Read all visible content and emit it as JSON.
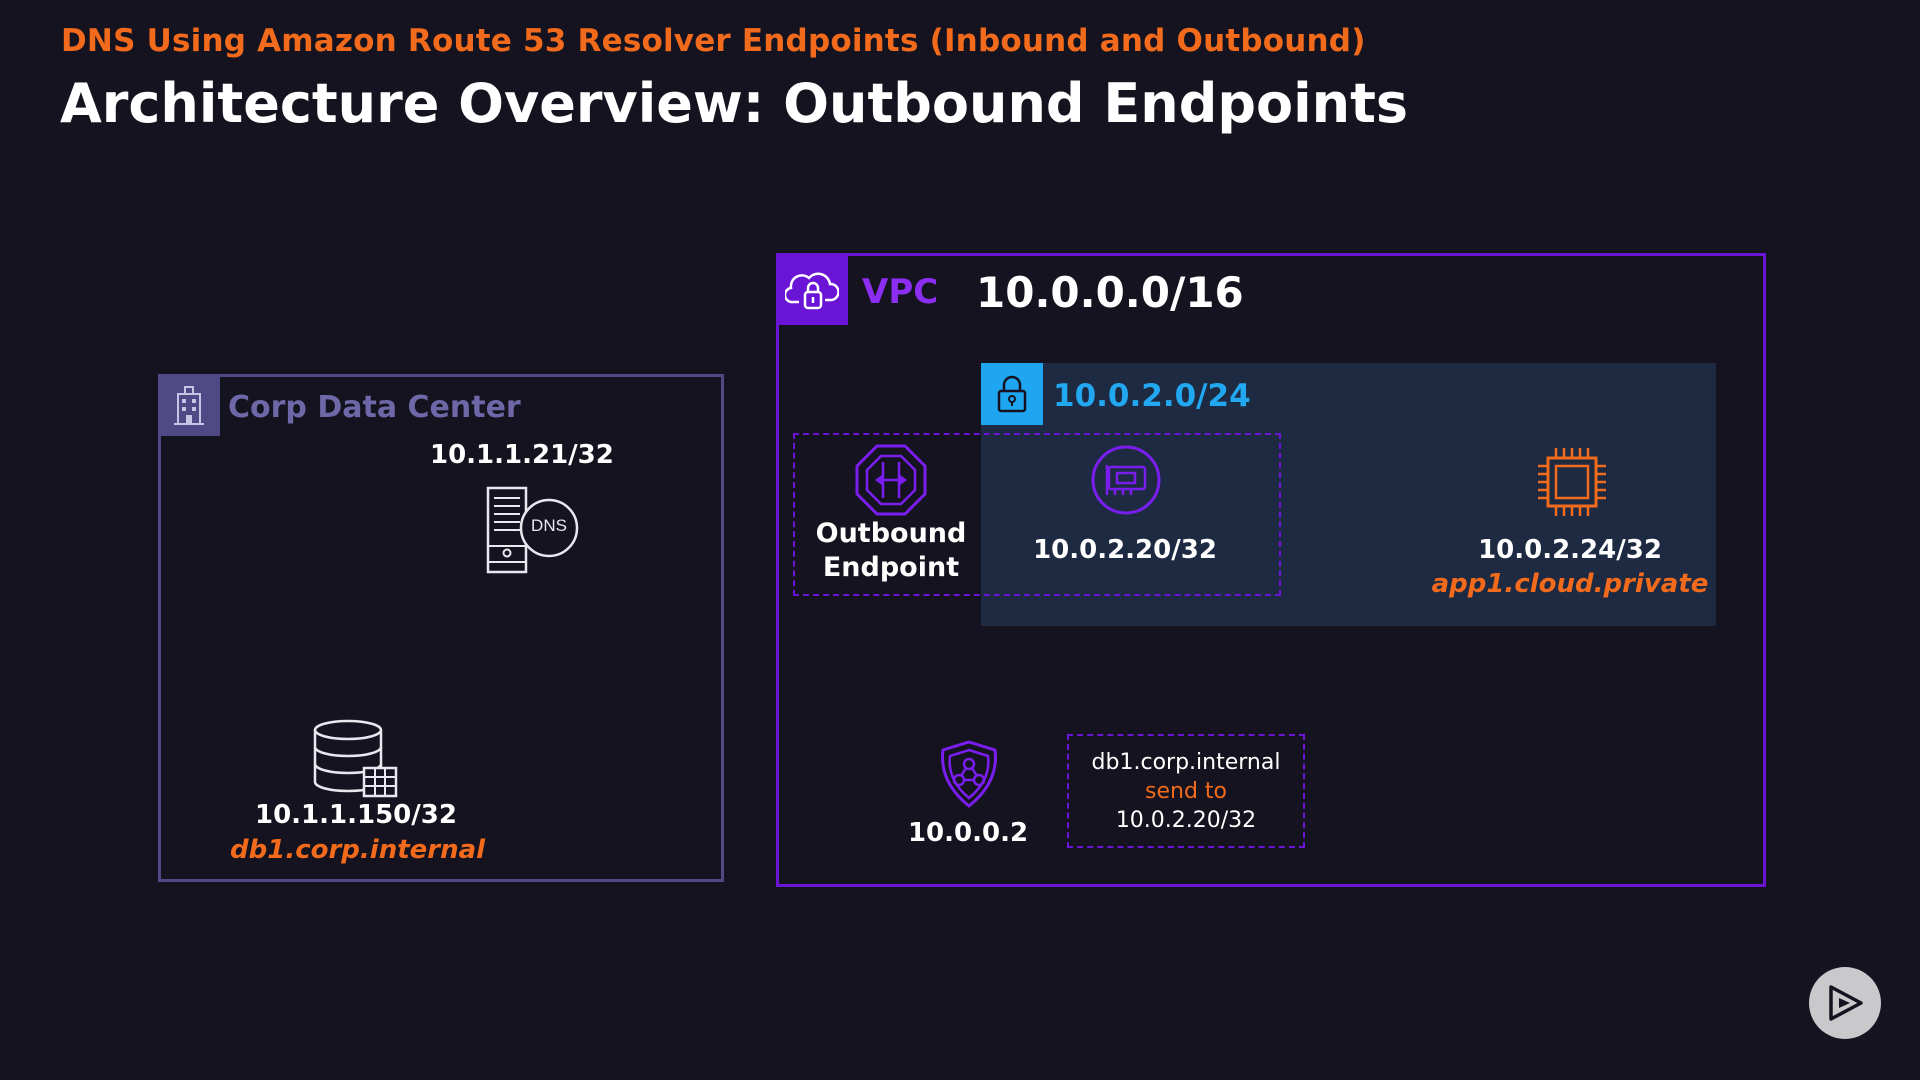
{
  "header": {
    "subtitle": "DNS Using Amazon Route 53 Resolver Endpoints (Inbound and Outbound)",
    "title": "Architecture Overview: Outbound Endpoints"
  },
  "corp": {
    "label": "Corp Data Center",
    "dns_server_ip": "10.1.1.21/32",
    "dns_badge": "DNS",
    "db_ip": "10.1.1.150/32",
    "db_host": "db1.corp.internal"
  },
  "vpc": {
    "label": "VPC",
    "cidr": "10.0.0.0/16",
    "subnet": {
      "cidr": "10.0.2.0/24",
      "endpoint_label_line1": "Outbound",
      "endpoint_label_line2": "Endpoint",
      "eni_ip": "10.0.2.20/32",
      "instance_ip": "10.0.2.24/32",
      "instance_host": "app1.cloud.private"
    },
    "resolver_ip": "10.0.0.2",
    "rule": {
      "domain": "db1.corp.internal",
      "action": "send to",
      "target": "10.0.2.20/32"
    }
  },
  "colors": {
    "background": "#15131f",
    "accent_orange": "#f26a1b",
    "vpc_purple": "#6a14d6",
    "subnet_blue": "#1ea6f0",
    "corp_slate": "#4f4a86"
  },
  "icons": [
    "building-icon",
    "cloud-lock-icon",
    "padlock-icon",
    "dns-server-icon",
    "database-icon",
    "outbound-endpoint-icon",
    "network-interface-icon",
    "ec2-chip-icon",
    "route53-resolver-icon",
    "play-icon"
  ]
}
